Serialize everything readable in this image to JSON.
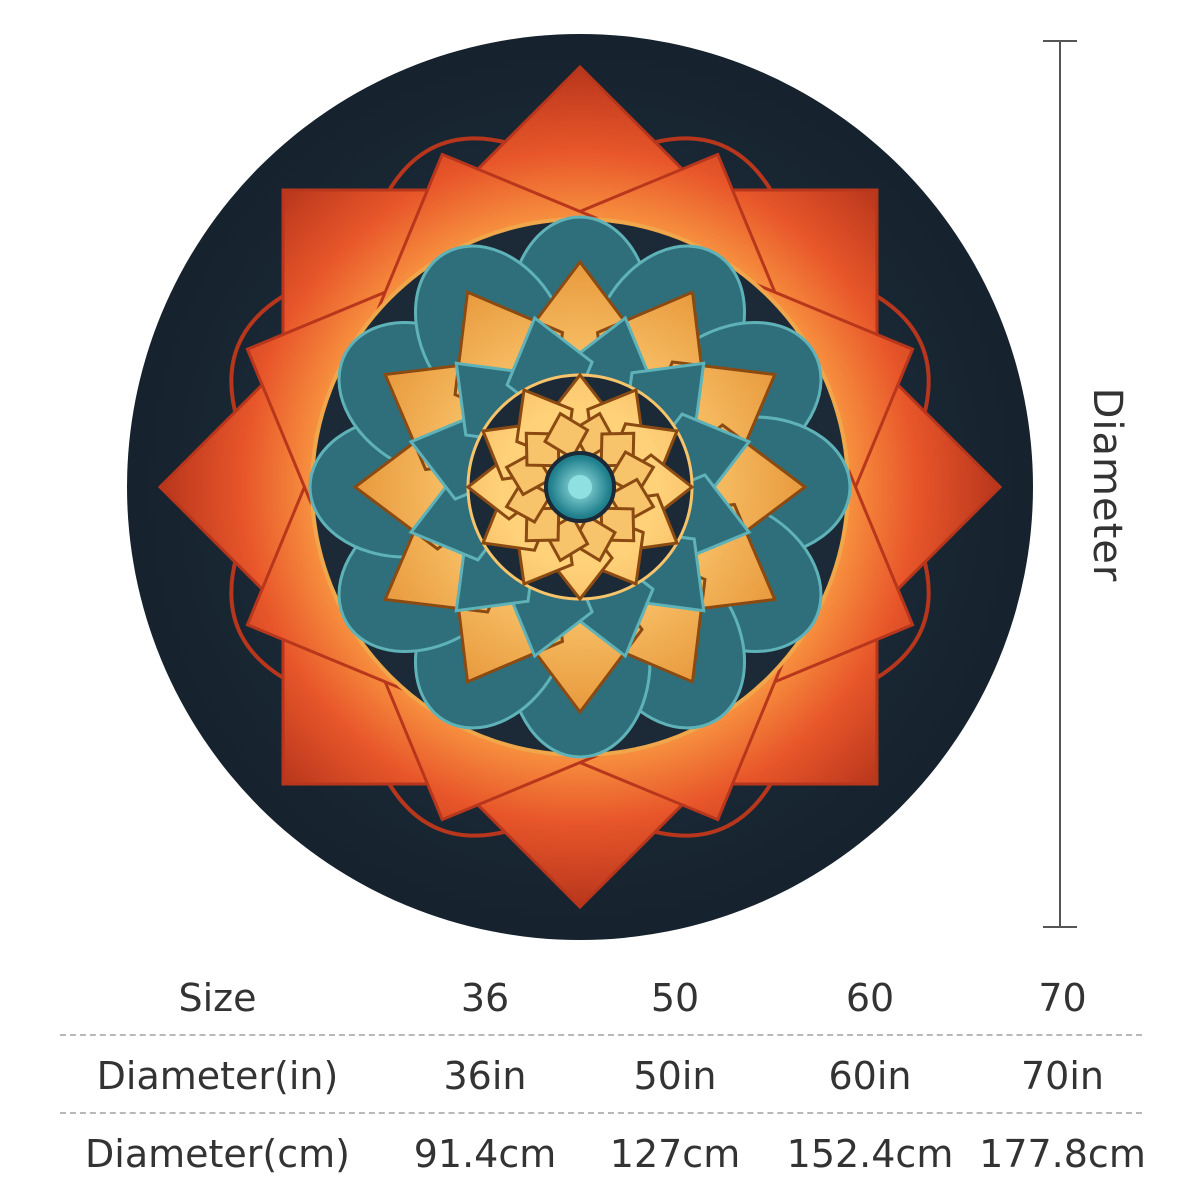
{
  "dimension": {
    "label": "Diameter"
  },
  "size_table": {
    "rows": [
      {
        "header": "Size",
        "values": [
          "36",
          "50",
          "60",
          "70"
        ]
      },
      {
        "header": "Diameter(in)",
        "values": [
          "36in",
          "50in",
          "60in",
          "70in"
        ]
      },
      {
        "header": "Diameter(cm)",
        "values": [
          "91.4cm",
          "127cm",
          "152.4cm",
          "177.8cm"
        ]
      }
    ]
  },
  "colors": {
    "rug_background": "#1b2a36",
    "outer_petals": "#e0502a",
    "outer_petals_dark": "#b8361c",
    "teal": "#2f6f7c",
    "teal_light": "#5fb3b8",
    "gold": "#f0a64a",
    "gold_light": "#f7c46c",
    "center": "#3fb3bd",
    "text": "#333333",
    "divider": "#b8b8b8"
  }
}
